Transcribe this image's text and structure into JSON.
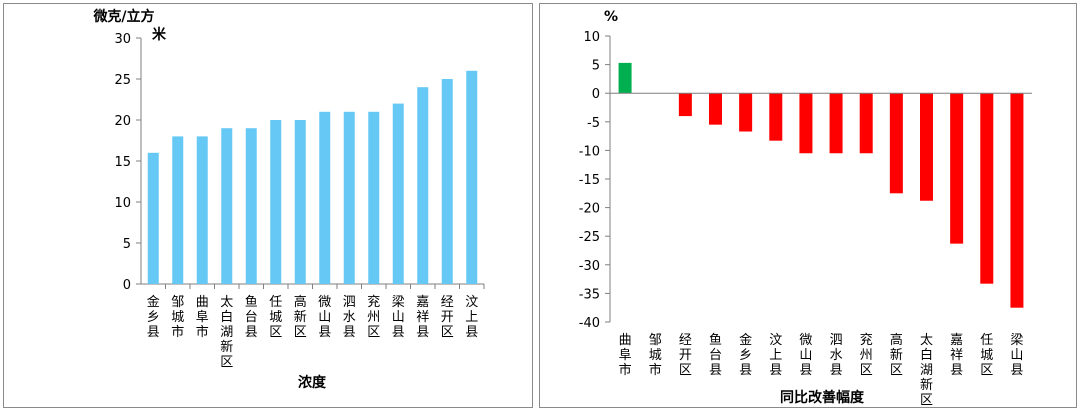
{
  "chart_data": [
    {
      "type": "bar",
      "title": "",
      "ylabel": "微克/立方米",
      "xlabel": "浓度",
      "ylim": [
        0,
        30
      ],
      "yticks": [
        0,
        5,
        10,
        15,
        20,
        25,
        30
      ],
      "bar_color": "#66C8F5",
      "grid": false,
      "categories": [
        "金乡县",
        "邹城市",
        "曲阜市",
        "太白湖新区",
        "鱼台县",
        "任城区",
        "高新区",
        "微山县",
        "泗水县",
        "兖州区",
        "梁山县",
        "嘉祥县",
        "经开区",
        "汶上县"
      ],
      "values": [
        16,
        18,
        18,
        19,
        19,
        20,
        20,
        21,
        21,
        21,
        22,
        24,
        25,
        26
      ]
    },
    {
      "type": "bar",
      "title": "",
      "ylabel": "%",
      "xlabel": "同比改善幅度",
      "ylim": [
        -40,
        10
      ],
      "yticks": [
        10,
        5,
        0,
        -5,
        -10,
        -15,
        -20,
        -25,
        -30,
        -35,
        -40
      ],
      "positive_color": "#00B050",
      "negative_color": "#FF0000",
      "grid": false,
      "categories": [
        "曲阜市",
        "邹城市",
        "经开区",
        "鱼台县",
        "金乡县",
        "汶上县",
        "微山县",
        "泗水县",
        "兖州区",
        "高新区",
        "太白湖新区",
        "嘉祥县",
        "任城区",
        "梁山县"
      ],
      "values": [
        5.3,
        0,
        -4.0,
        -5.5,
        -6.7,
        -8.3,
        -10.5,
        -10.5,
        -10.5,
        -17.5,
        -18.8,
        -26.3,
        -33.3,
        -37.5
      ]
    }
  ]
}
